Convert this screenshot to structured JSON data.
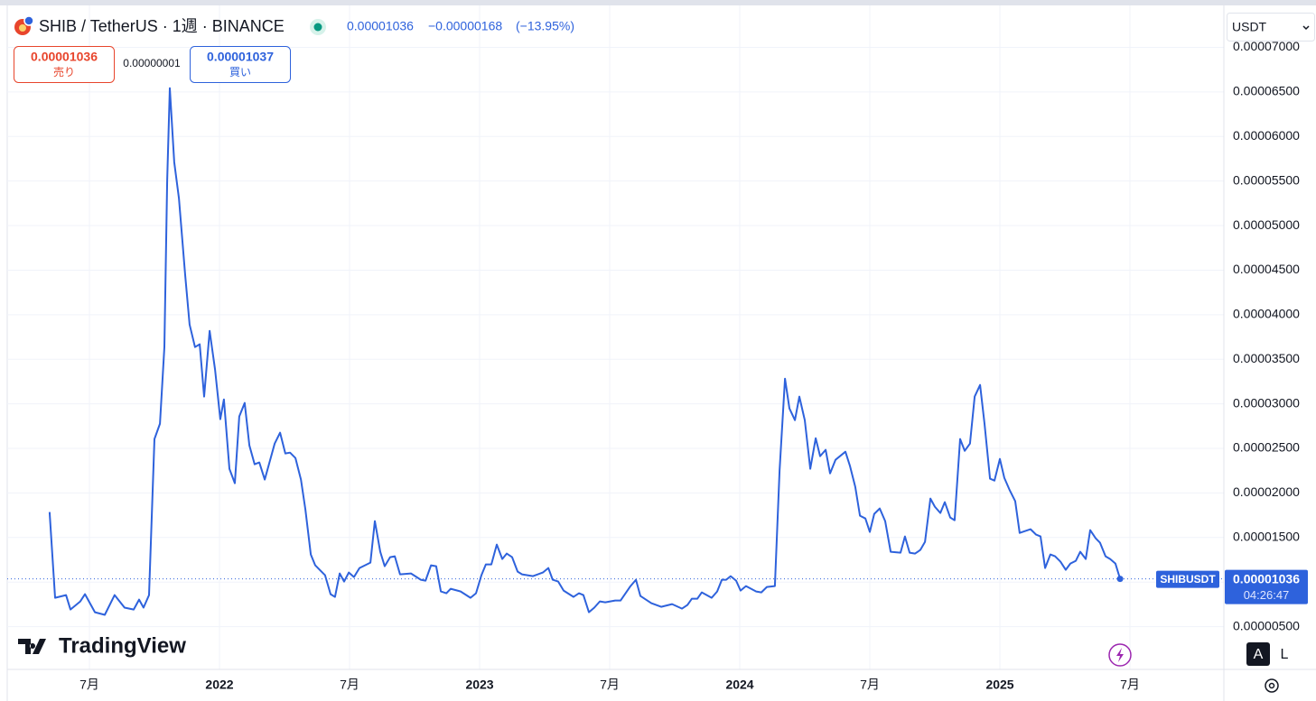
{
  "header": {
    "title": "SHIB / TetherUS · 1週 · BINANCE",
    "price": "0.00001036",
    "change": "−0.00000168",
    "change_pct": "(−13.95%)",
    "currency": "USDT"
  },
  "order_panel": {
    "sell_price": "0.00001036",
    "sell_label": "売り",
    "spread": "0.00000001",
    "buy_price": "0.00001037",
    "buy_label": "買い"
  },
  "price_label": {
    "price": "0.00001036",
    "countdown": "04:26:47"
  },
  "logo": "TradingView",
  "buttons": {
    "auto": "A",
    "log": "L"
  },
  "chart_data": {
    "type": "line",
    "x": [
      2021.347,
      2021.368,
      2021.41,
      2021.427,
      2021.465,
      2021.483,
      2021.521,
      2021.559,
      2021.597,
      2021.635,
      2021.67,
      2021.691,
      2021.708,
      2021.729,
      2021.75,
      2021.771,
      2021.788,
      2021.799,
      2021.809,
      2021.826,
      2021.844,
      2021.868,
      2021.885,
      2021.906,
      2021.924,
      2021.941,
      2021.962,
      2021.983,
      2022.003,
      2022.017,
      2022.038,
      2022.059,
      2022.076,
      2022.097,
      2022.115,
      2022.135,
      2022.153,
      2022.174,
      2022.212,
      2022.233,
      2022.253,
      2022.271,
      2022.292,
      2022.313,
      2022.33,
      2022.351,
      2022.368,
      2022.406,
      2022.427,
      2022.444,
      2022.462,
      2022.479,
      2022.497,
      2022.517,
      2022.538,
      2022.58,
      2022.597,
      2022.618,
      2022.635,
      2022.656,
      2022.674,
      2022.694,
      2022.736,
      2022.774,
      2022.792,
      2022.813,
      2022.833,
      2022.851,
      2022.872,
      2022.889,
      2022.927,
      2022.965,
      2022.986,
      2023.007,
      2023.024,
      2023.045,
      2023.066,
      2023.087,
      2023.104,
      2023.125,
      2023.146,
      2023.163,
      2023.205,
      2023.243,
      2023.264,
      2023.281,
      2023.302,
      2023.323,
      2023.361,
      2023.382,
      2023.399,
      2023.42,
      2023.441,
      2023.462,
      2023.483,
      2023.521,
      2023.542,
      2023.58,
      2023.601,
      2023.618,
      2023.66,
      2023.698,
      2023.74,
      2023.778,
      2023.799,
      2023.816,
      2023.837,
      2023.854,
      2023.892,
      2023.913,
      2023.931,
      2023.948,
      2023.965,
      2023.986,
      2024.003,
      2024.024,
      2024.063,
      2024.083,
      2024.104,
      2024.135,
      2024.153,
      2024.174,
      2024.191,
      2024.212,
      2024.229,
      2024.25,
      2024.271,
      2024.292,
      2024.309,
      2024.33,
      2024.347,
      2024.368,
      2024.406,
      2024.424,
      2024.444,
      2024.462,
      2024.483,
      2024.5,
      2024.517,
      2024.538,
      2024.559,
      2024.58,
      2024.618,
      2024.635,
      2024.653,
      2024.674,
      2024.694,
      2024.712,
      2024.733,
      2024.75,
      2024.771,
      2024.788,
      2024.809,
      2024.826,
      2024.847,
      2024.865,
      2024.885,
      2024.903,
      2024.924,
      2024.941,
      2024.962,
      2024.979,
      2025.0,
      2025.017,
      2025.038,
      2025.059,
      2025.076,
      2025.118,
      2025.139,
      2025.156,
      2025.174,
      2025.194,
      2025.212,
      2025.233,
      2025.253,
      2025.271,
      2025.292,
      2025.309,
      2025.33,
      2025.347,
      2025.368,
      2025.385,
      2025.406,
      2025.424,
      2025.444,
      2025.462
    ],
    "series": [
      {
        "name": "SHIBUSDT",
        "color": "#2e62dc",
        "values": [
          1.785e-05,
          8.24e-06,
          8.54e-06,
          6.92e-06,
          7.83e-06,
          8.64e-06,
          6.62e-06,
          6.32e-06,
          8.54e-06,
          7.13e-06,
          6.92e-06,
          8.04e-06,
          7.13e-06,
          8.54e-06,
          2.605e-05,
          2.777e-05,
          3.637e-05,
          5.509e-05,
          6.542e-05,
          5.712e-05,
          5.307e-05,
          4.447e-05,
          3.89e-05,
          3.637e-05,
          3.668e-05,
          3.081e-05,
          3.819e-05,
          3.384e-05,
          2.828e-05,
          3.05e-05,
          2.271e-05,
          2.109e-05,
          2.858e-05,
          3.01e-05,
          2.534e-05,
          2.322e-05,
          2.342e-05,
          2.15e-05,
          2.554e-05,
          2.676e-05,
          2.443e-05,
          2.453e-05,
          2.392e-05,
          2.15e-05,
          1.816e-05,
          1.31e-05,
          1.188e-05,
          1.077e-05,
          8.64e-06,
          8.34e-06,
          1.097e-05,
          1.006e-05,
          1.107e-05,
          1.057e-05,
          1.158e-05,
          1.219e-05,
          1.684e-05,
          1.34e-05,
          1.178e-05,
          1.279e-05,
          1.289e-05,
          1.087e-05,
          1.097e-05,
          1.026e-05,
          1.016e-05,
          1.188e-05,
          1.178e-05,
          8.95e-06,
          8.74e-06,
          9.25e-06,
          8.95e-06,
          8.24e-06,
          8.74e-06,
          1.077e-05,
          1.198e-05,
          1.198e-05,
          1.421e-05,
          1.259e-05,
          1.32e-05,
          1.279e-05,
          1.117e-05,
          1.087e-05,
          1.067e-05,
          1.107e-05,
          1.158e-05,
          1.026e-05,
          1.006e-05,
          9.05e-06,
          8.34e-06,
          8.74e-06,
          8.54e-06,
          6.62e-06,
          7.13e-06,
          7.83e-06,
          7.73e-06,
          7.93e-06,
          7.93e-06,
          9.55e-06,
          1.026e-05,
          8.44e-06,
          7.63e-06,
          7.23e-06,
          7.53e-06,
          7.02e-06,
          7.43e-06,
          8.14e-06,
          8.14e-06,
          8.85e-06,
          8.24e-06,
          8.95e-06,
          1.026e-05,
          1.026e-05,
          1.067e-05,
          1.016e-05,
          9.05e-06,
          9.55e-06,
          8.95e-06,
          8.85e-06,
          9.45e-06,
          9.55e-06,
          2.251e-05,
          3.283e-05,
          2.949e-05,
          2.817e-05,
          3.081e-05,
          2.817e-05,
          2.271e-05,
          2.615e-05,
          2.413e-05,
          2.484e-05,
          2.22e-05,
          2.372e-05,
          2.463e-05,
          2.301e-05,
          2.069e-05,
          1.745e-05,
          1.714e-05,
          1.563e-05,
          1.765e-05,
          1.826e-05,
          1.684e-05,
          1.34e-05,
          1.33e-05,
          1.512e-05,
          1.33e-05,
          1.32e-05,
          1.36e-05,
          1.451e-05,
          1.937e-05,
          1.846e-05,
          1.775e-05,
          1.897e-05,
          1.725e-05,
          1.694e-05,
          2.605e-05,
          2.473e-05,
          2.554e-05,
          3.081e-05,
          3.212e-05,
          2.777e-05,
          2.16e-05,
          2.139e-05,
          2.382e-05,
          2.17e-05,
          2.028e-05,
          1.907e-05,
          1.552e-05,
          1.593e-05,
          1.532e-05,
          1.512e-05,
          1.158e-05,
          1.31e-05,
          1.289e-05,
          1.229e-05,
          1.138e-05,
          1.208e-05,
          1.239e-05,
          1.34e-05,
          1.259e-05,
          1.583e-05,
          1.492e-05,
          1.441e-05,
          1.289e-05,
          1.259e-05,
          1.208e-05,
          1.036e-05
        ]
      }
    ],
    "xlim": [
      2021.184,
      2025.861
    ],
    "xticks": [
      {
        "value": 2021.5,
        "label": "7月"
      },
      2022,
      {
        "value": 2022.5,
        "label": "7月"
      },
      2023,
      {
        "value": 2023.5,
        "label": "7月"
      },
      2024,
      {
        "value": 2024.5,
        "label": "7月"
      },
      2025,
      {
        "value": 2025.5,
        "label": "7月"
      }
    ],
    "ylim": [
      2e-07,
      7.43e-05
    ],
    "yticks": [
      {
        "value": 5e-06,
        "label": "0.00000500"
      },
      {
        "value": 1e-05,
        "label": "0.00001000"
      },
      {
        "value": 1.5e-05,
        "label": "0.00001500"
      },
      {
        "value": 2e-05,
        "label": "0.00002000"
      },
      {
        "value": 2.5e-05,
        "label": "0.00002500"
      },
      {
        "value": 3e-05,
        "label": "0.00003000"
      },
      {
        "value": 3.5e-05,
        "label": "0.00003500"
      },
      {
        "value": 4e-05,
        "label": "0.00004000"
      },
      {
        "value": 4.5e-05,
        "label": "0.00004500"
      },
      {
        "value": 5e-05,
        "label": "0.00005000"
      },
      {
        "value": 5.5e-05,
        "label": "0.00005500"
      },
      {
        "value": 6e-05,
        "label": "0.00006000"
      },
      {
        "value": 6.5e-05,
        "label": "0.00006500"
      },
      {
        "value": 7e-05,
        "label": "0.00007000"
      }
    ],
    "grid": true
  }
}
